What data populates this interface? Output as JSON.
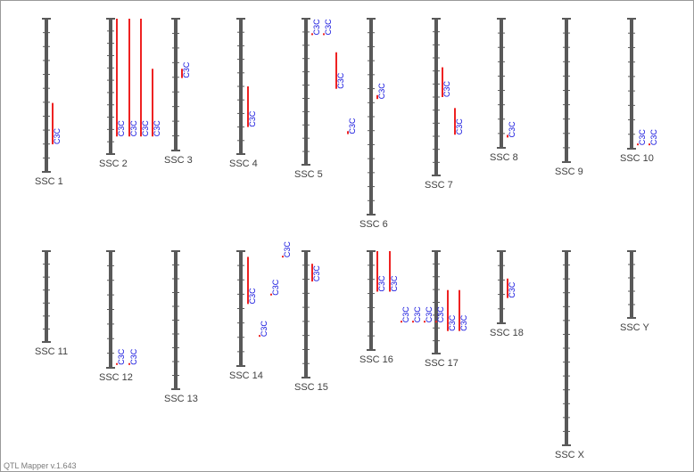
{
  "app": {
    "footer": "QTL Mapper v.1.643"
  },
  "colors": {
    "chromosome": "#595959",
    "qtl_bar": "#ee2222",
    "qtl_label": "#1010dd",
    "chrom_label": "#404040"
  },
  "qtl_label": "C3C",
  "chromosomes": [
    {
      "id": "SSC 1",
      "qtls": [
        {
          "bars": 1,
          "span": [
            0.55,
            0.82
          ]
        }
      ]
    },
    {
      "id": "SSC 2",
      "qtls": [
        {
          "bars": 1,
          "span": [
            0.0,
            0.87
          ]
        },
        {
          "bars": 1,
          "span": [
            0.0,
            0.87
          ]
        },
        {
          "bars": 1,
          "span": [
            0.0,
            0.87
          ]
        },
        {
          "bars": 1,
          "span": [
            0.37,
            0.87
          ]
        }
      ]
    },
    {
      "id": "SSC 3",
      "qtls": [
        {
          "bars": 1,
          "span": [
            0.38,
            0.45
          ]
        }
      ]
    },
    {
      "id": "SSC 4",
      "qtls": [
        {
          "bars": 1,
          "span": [
            0.5,
            0.8
          ]
        }
      ]
    },
    {
      "id": "SSC 5",
      "qtls": [
        {
          "bars": 1,
          "span": [
            0.1,
            0.11
          ]
        },
        {
          "bars": 1,
          "span": [
            0.1,
            0.11
          ]
        },
        {
          "bars": 1,
          "span": [
            0.23,
            0.48
          ]
        },
        {
          "bars": 1,
          "span": [
            0.77,
            0.79
          ]
        }
      ]
    },
    {
      "id": "SSC 6",
      "qtls": [
        {
          "bars": 1,
          "span": [
            0.39,
            0.41
          ]
        }
      ]
    },
    {
      "id": "SSC 7",
      "qtls": [
        {
          "bars": 1,
          "span": [
            0.31,
            0.5
          ]
        },
        {
          "bars": 1,
          "span": [
            0.57,
            0.74
          ]
        }
      ]
    },
    {
      "id": "SSC 8",
      "qtls": [
        {
          "bars": 1,
          "span": [
            0.9,
            0.92
          ]
        }
      ]
    },
    {
      "id": "SSC 9",
      "qtls": []
    },
    {
      "id": "SSC 10",
      "qtls": [
        {
          "bars": 1,
          "span": [
            0.96,
            0.97
          ]
        },
        {
          "bars": 1,
          "span": [
            0.96,
            0.97
          ]
        }
      ]
    },
    {
      "id": "SSC 11",
      "qtls": []
    },
    {
      "id": "SSC 12",
      "qtls": [
        {
          "bars": 1,
          "span": [
            0.96,
            0.97
          ]
        },
        {
          "bars": 1,
          "span": [
            0.96,
            0.97
          ]
        }
      ]
    },
    {
      "id": "SSC 13",
      "qtls": []
    },
    {
      "id": "SSC 14",
      "qtls": [
        {
          "bars": 1,
          "span": [
            0.05,
            0.46
          ]
        },
        {
          "bars": 1,
          "span": [
            0.37,
            0.38
          ]
        },
        {
          "bars": 1,
          "span": [
            0.73,
            0.74
          ]
        },
        {
          "bars": 1,
          "span": [
            0.04,
            0.05
          ]
        }
      ]
    },
    {
      "id": "SSC 15",
      "qtls": [
        {
          "bars": 1,
          "span": [
            0.1,
            0.24
          ]
        }
      ]
    },
    {
      "id": "SSC 16",
      "qtls": [
        {
          "bars": 1,
          "span": [
            0.0,
            0.41
          ]
        },
        {
          "bars": 1,
          "span": [
            0.0,
            0.41
          ]
        }
      ]
    },
    {
      "id": "SSC 17",
      "qtls": [
        {
          "bars": 1,
          "span": [
            0.68,
            0.69
          ]
        },
        {
          "bars": 1,
          "span": [
            0.68,
            0.69
          ]
        },
        {
          "bars": 1,
          "span": [
            0.68,
            0.69
          ]
        },
        {
          "bars": 1,
          "span": [
            0.68,
            0.69
          ]
        },
        {
          "bars": 1,
          "span": [
            0.38,
            0.78
          ]
        },
        {
          "bars": 1,
          "span": [
            0.38,
            0.78
          ]
        }
      ]
    },
    {
      "id": "SSC 18",
      "qtls": [
        {
          "bars": 1,
          "span": [
            0.38,
            0.65
          ]
        }
      ]
    },
    {
      "id": "SSC X",
      "qtls": []
    },
    {
      "id": "SSC Y",
      "qtls": []
    }
  ]
}
